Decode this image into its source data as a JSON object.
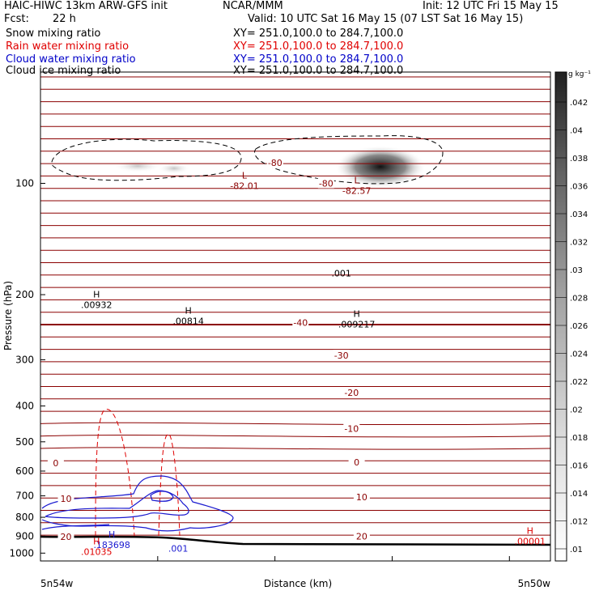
{
  "header": {
    "model": "HAIC-HIWC 13km ARW-GFS init",
    "center": "NCAR/MMM",
    "init": "Init: 12 UTC Fri 15 May 15",
    "fcst_label": "Fcst:",
    "fcst_value": "22 h",
    "valid": "Valid: 10 UTC Sat 16 May 15 (07 LST Sat 16 May 15)"
  },
  "fields": [
    {
      "name": "Snow mixing ratio",
      "xy": "XY= 251.0,100.0 to 284.7,100.0",
      "color": "#000000"
    },
    {
      "name": "Rain water mixing ratio",
      "xy": "XY= 251.0,100.0 to 284.7,100.0",
      "color": "#e00000"
    },
    {
      "name": "Cloud water mixing ratio",
      "xy": "XY= 251.0,100.0 to 284.7,100.0",
      "color": "#0000c8"
    },
    {
      "name": "Cloud ice mixing ratio",
      "xy": "XY= 251.0,100.0 to 284.7,100.0",
      "color": "#000000"
    }
  ],
  "colors": {
    "temperature": "#8b0000",
    "rain": "#e00000",
    "cloud_water": "#1a1ad0",
    "ice": "#000000",
    "terrain": "#000000"
  },
  "chart_data": {
    "type": "contour",
    "xlabel": "Distance (km)",
    "ylabel": "Pressure (hPa)",
    "x_tick_labels": [
      "5n54w",
      "5n50w"
    ],
    "x_range": [
      0,
      1
    ],
    "y_range": [
      50,
      1050
    ],
    "y_log_scale": true,
    "yticks": [
      100,
      200,
      300,
      400,
      500,
      600,
      700,
      800,
      900,
      1000
    ],
    "colorbar": {
      "unit": "g kg⁻¹",
      "ticks": [
        ".01",
        ".012",
        ".014",
        ".016",
        ".018",
        ".02",
        ".022",
        ".024",
        ".026",
        ".028",
        ".03",
        ".032",
        ".034",
        ".036",
        ".038",
        ".04",
        ".042"
      ]
    },
    "temperature_labels": [
      {
        "text": "-80",
        "x": 0.46,
        "p": 88
      },
      {
        "text": "-80",
        "x": 0.56,
        "p": 100
      },
      {
        "text": "-40",
        "x": 0.51,
        "p": 238
      },
      {
        "text": "-30",
        "x": 0.59,
        "p": 292
      },
      {
        "text": "-20",
        "x": 0.61,
        "p": 368
      },
      {
        "text": "-10",
        "x": 0.61,
        "p": 460
      },
      {
        "text": "0",
        "x": 0.03,
        "p": 570
      },
      {
        "text": "0",
        "x": 0.62,
        "p": 567
      },
      {
        "text": "10",
        "x": 0.05,
        "p": 712
      },
      {
        "text": "10",
        "x": 0.63,
        "p": 705
      },
      {
        "text": "20",
        "x": 0.05,
        "p": 903
      },
      {
        "text": "20",
        "x": 0.63,
        "p": 900
      }
    ],
    "extrema": [
      {
        "kind": "L",
        "value": "-82.01",
        "x": 0.4,
        "p": 100,
        "color": "temperature"
      },
      {
        "kind": "L",
        "value": "-82.57",
        "x": 0.62,
        "p": 103,
        "color": "temperature"
      },
      {
        "kind": "H",
        "value": ".00932",
        "x": 0.11,
        "p": 210,
        "color": "ice"
      },
      {
        "kind": "H",
        "value": ".00814",
        "x": 0.29,
        "p": 232,
        "color": "ice"
      },
      {
        "kind": "H",
        "value": ".009217",
        "x": 0.62,
        "p": 237,
        "color": "ice"
      },
      {
        "kind": "H",
        "value": ".183698",
        "x": 0.14,
        "p": 935,
        "color": "cloud_water"
      },
      {
        "kind": "H",
        "value": ".01035",
        "x": 0.11,
        "p": 975,
        "color": "rain"
      },
      {
        "kind": "H",
        "value": ".00001",
        "x": 0.96,
        "p": 915,
        "color": "rain"
      }
    ],
    "contour_labels": [
      {
        "text": ".001",
        "x": 0.59,
        "p": 175,
        "color": "ice"
      },
      {
        "text": ".001",
        "x": 0.27,
        "p": 970,
        "color": "cloud_water"
      }
    ]
  }
}
